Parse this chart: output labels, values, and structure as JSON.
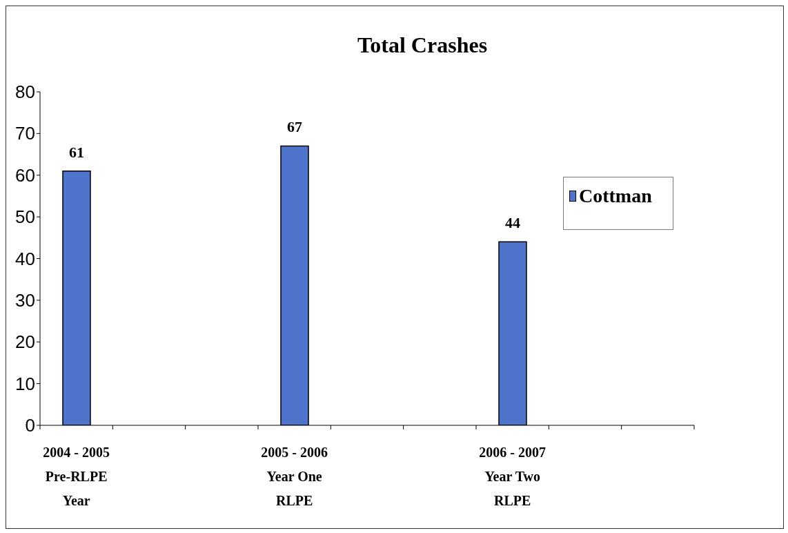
{
  "chart_data": {
    "type": "bar",
    "title": "Total Crashes",
    "categories": [
      "2004 - 2005\nPre-RLPE\nYear",
      null,
      null,
      "2005 - 2006\nYear One\nRLPE",
      null,
      null,
      "2006 - 2007\nYear Two\nRLPE",
      null,
      null
    ],
    "series": [
      {
        "name": "Cottman",
        "color": "#4f74cc",
        "values": [
          61,
          null,
          null,
          67,
          null,
          null,
          44,
          null,
          null
        ]
      }
    ],
    "ylim": [
      0,
      80
    ],
    "yticks": [
      0,
      10,
      20,
      30,
      40,
      50,
      60,
      70,
      80
    ],
    "data_labels": true,
    "legend": "right"
  }
}
